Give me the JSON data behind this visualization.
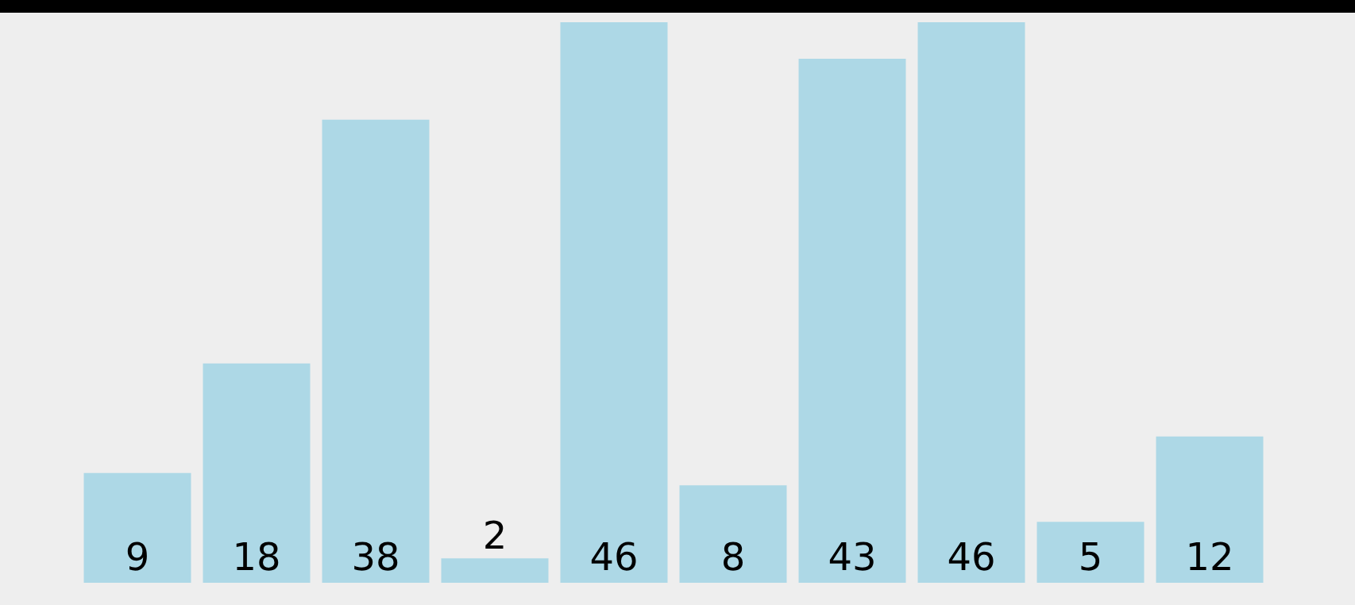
{
  "chart_data": {
    "type": "bar",
    "categories": [
      null,
      null,
      null,
      null,
      null,
      null,
      null,
      null,
      null,
      null
    ],
    "values": [
      9,
      18,
      38,
      2,
      46,
      8,
      43,
      46,
      5,
      12
    ],
    "color": "#add8e6",
    "data_labels": true,
    "legend": false,
    "grid": false,
    "tick_labels": false
  }
}
